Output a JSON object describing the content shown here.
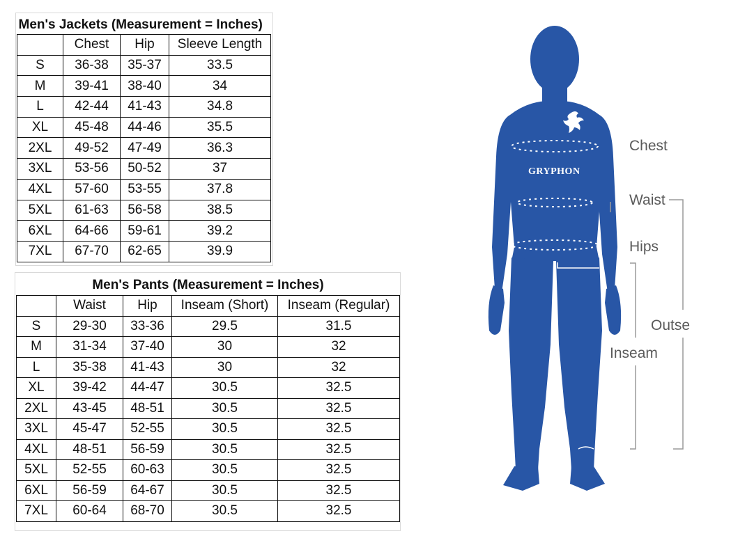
{
  "jackets": {
    "title": "Men's Jackets (Measurement = Inches)",
    "columns": [
      "",
      "Chest",
      "Hip",
      "Sleeve Length"
    ],
    "rows": [
      [
        "S",
        "36-38",
        "35-37",
        "33.5"
      ],
      [
        "M",
        "39-41",
        "38-40",
        "34"
      ],
      [
        "L",
        "42-44",
        "41-43",
        "34.8"
      ],
      [
        "XL",
        "45-48",
        "44-46",
        "35.5"
      ],
      [
        "2XL",
        "49-52",
        "47-49",
        "36.3"
      ],
      [
        "3XL",
        "53-56",
        "50-52",
        "37"
      ],
      [
        "4XL",
        "57-60",
        "53-55",
        "37.8"
      ],
      [
        "5XL",
        "61-63",
        "56-58",
        "38.5"
      ],
      [
        "6XL",
        "64-66",
        "59-61",
        "39.2"
      ],
      [
        "7XL",
        "67-70",
        "62-65",
        "39.9"
      ]
    ]
  },
  "pants": {
    "title": "Men's Pants (Measurement = Inches)",
    "columns": [
      "",
      "Waist",
      "Hip",
      "Inseam (Short)",
      "Inseam (Regular)"
    ],
    "rows": [
      [
        "S",
        "29-30",
        "33-36",
        "29.5",
        "31.5"
      ],
      [
        "M",
        "31-34",
        "37-40",
        "30",
        "32"
      ],
      [
        "L",
        "35-38",
        "41-43",
        "30",
        "32"
      ],
      [
        "XL",
        "39-42",
        "44-47",
        "30.5",
        "32.5"
      ],
      [
        "2XL",
        "43-45",
        "48-51",
        "30.5",
        "32.5"
      ],
      [
        "3XL",
        "45-47",
        "52-55",
        "30.5",
        "32.5"
      ],
      [
        "4XL",
        "48-51",
        "56-59",
        "30.5",
        "32.5"
      ],
      [
        "5XL",
        "52-55",
        "60-63",
        "30.5",
        "32.5"
      ],
      [
        "6XL",
        "56-59",
        "64-67",
        "30.5",
        "32.5"
      ],
      [
        "7XL",
        "60-64",
        "68-70",
        "30.5",
        "32.5"
      ]
    ]
  },
  "figure": {
    "brand": "GRYPHON",
    "brand_logo_icon": "gryphon-logo-icon",
    "labels": {
      "chest": "Chest",
      "waist": "Waist",
      "hips": "Hips",
      "outseam": "Outse",
      "inseam": "Inseam"
    },
    "colors": {
      "silhouette": "#2856a6",
      "label_text": "#5a5a5a",
      "guide_lines": "#9a9a9a"
    }
  }
}
